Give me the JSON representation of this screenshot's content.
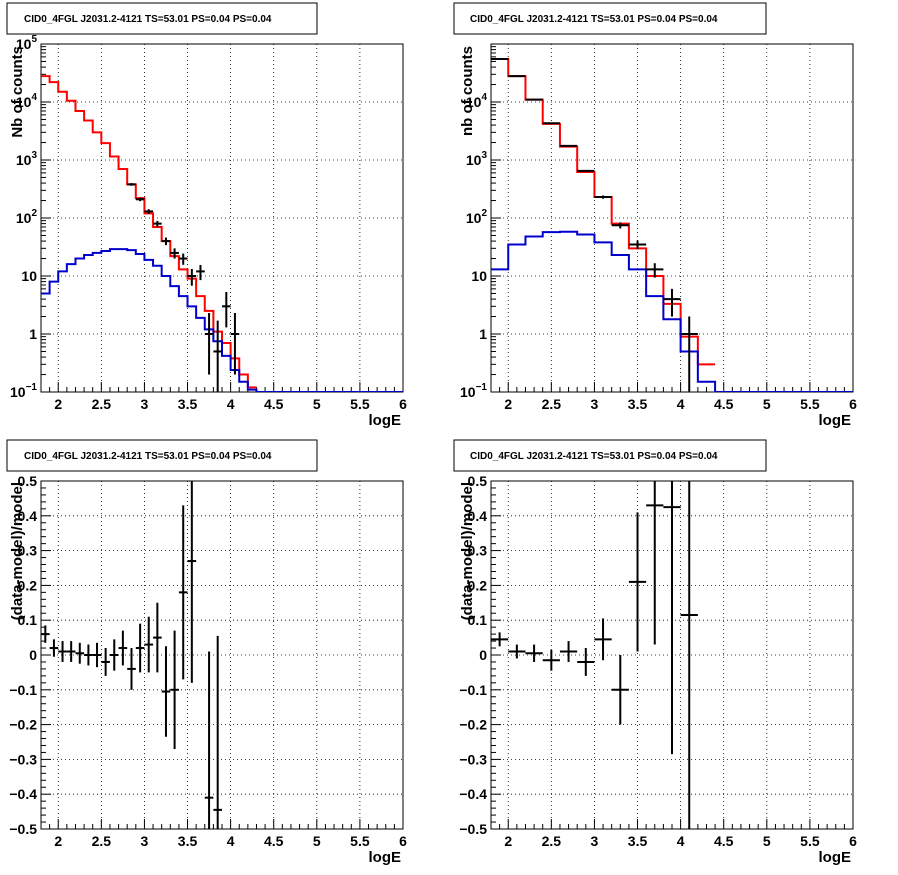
{
  "chart_data": [
    {
      "type": "line",
      "title": "CID0_4FGL J2031.2-4121 TS=53.01 PS=0.04 PS=0.04",
      "xlabel": "logE",
      "ylabel": "Nb of counts",
      "yscale": "log",
      "xlim": [
        1.8,
        6.0
      ],
      "ylim": [
        0.1,
        100000
      ],
      "xticks": [
        2,
        2.5,
        3,
        3.5,
        4,
        4.5,
        5,
        5.5,
        6
      ],
      "yticks": [
        0.1,
        1,
        10,
        100,
        1000,
        10000,
        100000
      ],
      "ytick_labels": [
        "10^-1",
        "1",
        "10",
        "10^2",
        "10^3",
        "10^4",
        "10^5"
      ],
      "grid": true,
      "histogram_bin_width": 0.1,
      "series": [
        {
          "style": "step",
          "color": "#ff0000",
          "x": [
            1.85,
            1.95,
            2.05,
            2.15,
            2.25,
            2.35,
            2.45,
            2.55,
            2.65,
            2.75,
            2.85,
            2.95,
            3.05,
            3.15,
            3.25,
            3.35,
            3.45,
            3.55,
            3.65,
            3.75,
            3.85,
            3.95,
            4.05,
            4.15,
            4.25
          ],
          "y": [
            28000,
            22000,
            15000,
            10500,
            7000,
            4800,
            3000,
            1950,
            1150,
            700,
            380,
            220,
            120,
            70,
            40,
            22,
            13,
            9,
            4.5,
            2.5,
            1.1,
            0.7,
            0.38,
            0.2,
            0.12
          ]
        },
        {
          "style": "step",
          "color": "#0000cc",
          "x": [
            1.85,
            1.95,
            2.05,
            2.15,
            2.25,
            2.35,
            2.45,
            2.55,
            2.65,
            2.75,
            2.85,
            2.95,
            3.05,
            3.15,
            3.25,
            3.35,
            3.45,
            3.55,
            3.65,
            3.75,
            3.85,
            3.95,
            4.05,
            4.15,
            4.25,
            4.35,
            4.45,
            4.55,
            4.65,
            4.75,
            4.85,
            4.95,
            5.05,
            5.15,
            5.25,
            5.35,
            5.45,
            5.55,
            5.65,
            5.75,
            5.85,
            5.95
          ],
          "y": [
            5,
            8,
            12,
            16,
            20,
            23,
            25,
            27,
            29,
            29,
            28,
            24,
            19,
            15,
            10,
            6.7,
            4.5,
            3,
            1.9,
            1.2,
            0.75,
            0.42,
            0.24,
            0.15,
            0.11,
            0.1,
            0.1,
            0.1,
            0.1,
            0.1,
            0.1,
            0.1,
            0.1,
            0.1,
            0.1,
            0.1,
            0.1,
            0.1,
            0.1,
            0.1,
            0.1,
            0.1
          ]
        },
        {
          "style": "errorbar",
          "color": "#000000",
          "x": [
            2.85,
            2.95,
            3.05,
            3.15,
            3.25,
            3.35,
            3.45,
            3.55,
            3.65,
            3.75,
            3.85,
            3.95,
            4.05
          ],
          "y": [
            380,
            210,
            130,
            80,
            40,
            25,
            20,
            10,
            12,
            1,
            0.5,
            3,
            1
          ],
          "yerr_low": [
            20,
            15,
            12,
            9,
            6,
            5,
            4.4,
            3.2,
            3.5,
            0.8,
            0.4,
            1.7,
            0.8
          ],
          "yerr_high": [
            20,
            15,
            12,
            9,
            6,
            5,
            4.4,
            3.2,
            3.5,
            1.3,
            1.2,
            2.3,
            1.3
          ]
        }
      ]
    },
    {
      "type": "line",
      "title": "CID0_4FGL J2031.2-4121 TS=53.01 PS=0.04 PS=0.04",
      "xlabel": "logE",
      "ylabel": "nb of counts",
      "yscale": "log",
      "xlim": [
        1.8,
        6.0
      ],
      "ylim": [
        0.1,
        100000
      ],
      "xticks": [
        2,
        2.5,
        3,
        3.5,
        4,
        4.5,
        5,
        5.5,
        6
      ],
      "yticks": [
        0.1,
        1,
        10,
        100,
        1000,
        10000
      ],
      "ytick_labels": [
        "10^-1",
        "1",
        "10",
        "10^2",
        "10^3",
        "10^4"
      ],
      "grid": true,
      "histogram_bin_width": 0.2,
      "series": [
        {
          "style": "step",
          "color": "#ff0000",
          "x": [
            1.9,
            2.1,
            2.3,
            2.5,
            2.7,
            2.9,
            3.1,
            3.3,
            3.5,
            3.7,
            3.9,
            4.1,
            4.3
          ],
          "y": [
            55000,
            28000,
            11000,
            4200,
            1700,
            620,
            230,
            80,
            30,
            10,
            3.3,
            0.9,
            0.3
          ]
        },
        {
          "style": "step",
          "color": "#0000cc",
          "x": [
            1.9,
            2.1,
            2.3,
            2.5,
            2.7,
            2.9,
            3.1,
            3.3,
            3.5,
            3.7,
            3.9,
            4.1,
            4.3,
            4.5,
            4.7,
            4.9,
            5.1,
            5.3,
            5.5,
            5.7,
            5.9
          ],
          "y": [
            13,
            35,
            48,
            57,
            58,
            52,
            38,
            23,
            13,
            4.5,
            1.8,
            0.5,
            0.15,
            0.1,
            0.1,
            0.1,
            0.1,
            0.1,
            0.1,
            0.1,
            0.1
          ]
        },
        {
          "style": "errorbar",
          "color": "#000000",
          "x": [
            1.9,
            2.1,
            2.3,
            2.5,
            2.7,
            2.9,
            3.1,
            3.3,
            3.5,
            3.7,
            3.9,
            4.1
          ],
          "y": [
            55000,
            28000,
            11000,
            4300,
            1750,
            650,
            230,
            75,
            35,
            13,
            4,
            1
          ],
          "yerr_low": [
            230,
            170,
            100,
            65,
            40,
            25,
            15,
            9,
            6,
            3.6,
            2,
            1
          ],
          "yerr_high": [
            230,
            170,
            100,
            65,
            40,
            25,
            15,
            9,
            6,
            3.6,
            2,
            1
          ]
        }
      ]
    },
    {
      "type": "scatter",
      "title": "CID0_4FGL J2031.2-4121 TS=53.01 PS=0.04 PS=0.04",
      "xlabel": "logE",
      "ylabel": "(data-model)/model",
      "xlim": [
        1.8,
        6.0
      ],
      "ylim": [
        -0.5,
        0.5
      ],
      "xticks": [
        2,
        2.5,
        3,
        3.5,
        4,
        4.5,
        5,
        5.5,
        6
      ],
      "yticks": [
        -0.5,
        -0.4,
        -0.3,
        -0.2,
        -0.1,
        0,
        0.1,
        0.2,
        0.3,
        0.4,
        0.5
      ],
      "grid": true,
      "series": [
        {
          "style": "errorbar",
          "color": "#000000",
          "xerr": 0.05,
          "x": [
            1.85,
            1.95,
            2.05,
            2.15,
            2.25,
            2.35,
            2.45,
            2.55,
            2.65,
            2.75,
            2.85,
            2.95,
            3.05,
            3.15,
            3.25,
            3.35,
            3.45,
            3.55,
            3.75,
            3.85
          ],
          "y": [
            0.06,
            0.02,
            0.01,
            0.01,
            0.005,
            0.0,
            0.0,
            -0.02,
            0.0,
            0.02,
            -0.04,
            0.02,
            0.03,
            0.05,
            -0.105,
            -0.1,
            0.18,
            0.27,
            -0.41,
            -0.445
          ],
          "yerr": [
            0.025,
            0.025,
            0.03,
            0.03,
            0.03,
            0.03,
            0.035,
            0.04,
            0.045,
            0.05,
            0.06,
            0.07,
            0.08,
            0.1,
            0.13,
            0.17,
            0.25,
            0.35,
            0.42,
            0.5
          ]
        }
      ]
    },
    {
      "type": "scatter",
      "title": "CID0_4FGL J2031.2-4121 TS=53.01 PS=0.04 PS=0.04",
      "xlabel": "logE",
      "ylabel": "(data-model)/model",
      "xlim": [
        1.8,
        6.0
      ],
      "ylim": [
        -0.5,
        0.5
      ],
      "xticks": [
        2,
        2.5,
        3,
        3.5,
        4,
        4.5,
        5,
        5.5,
        6
      ],
      "yticks": [
        -0.5,
        -0.4,
        -0.3,
        -0.2,
        -0.1,
        0,
        0.1,
        0.2,
        0.3,
        0.4,
        0.5
      ],
      "grid": true,
      "series": [
        {
          "style": "errorbar",
          "color": "#000000",
          "xerr": 0.1,
          "x": [
            1.9,
            2.1,
            2.3,
            2.5,
            2.7,
            2.9,
            3.1,
            3.3,
            3.5,
            3.7,
            3.9,
            4.1
          ],
          "y": [
            0.045,
            0.01,
            0.005,
            -0.015,
            0.01,
            -0.02,
            0.045,
            -0.1,
            0.21,
            0.43,
            0.425,
            0.115
          ],
          "yerr": [
            0.02,
            0.02,
            0.025,
            0.03,
            0.03,
            0.04,
            0.06,
            0.1,
            0.2,
            0.4,
            0.71,
            0.8
          ]
        }
      ]
    }
  ]
}
